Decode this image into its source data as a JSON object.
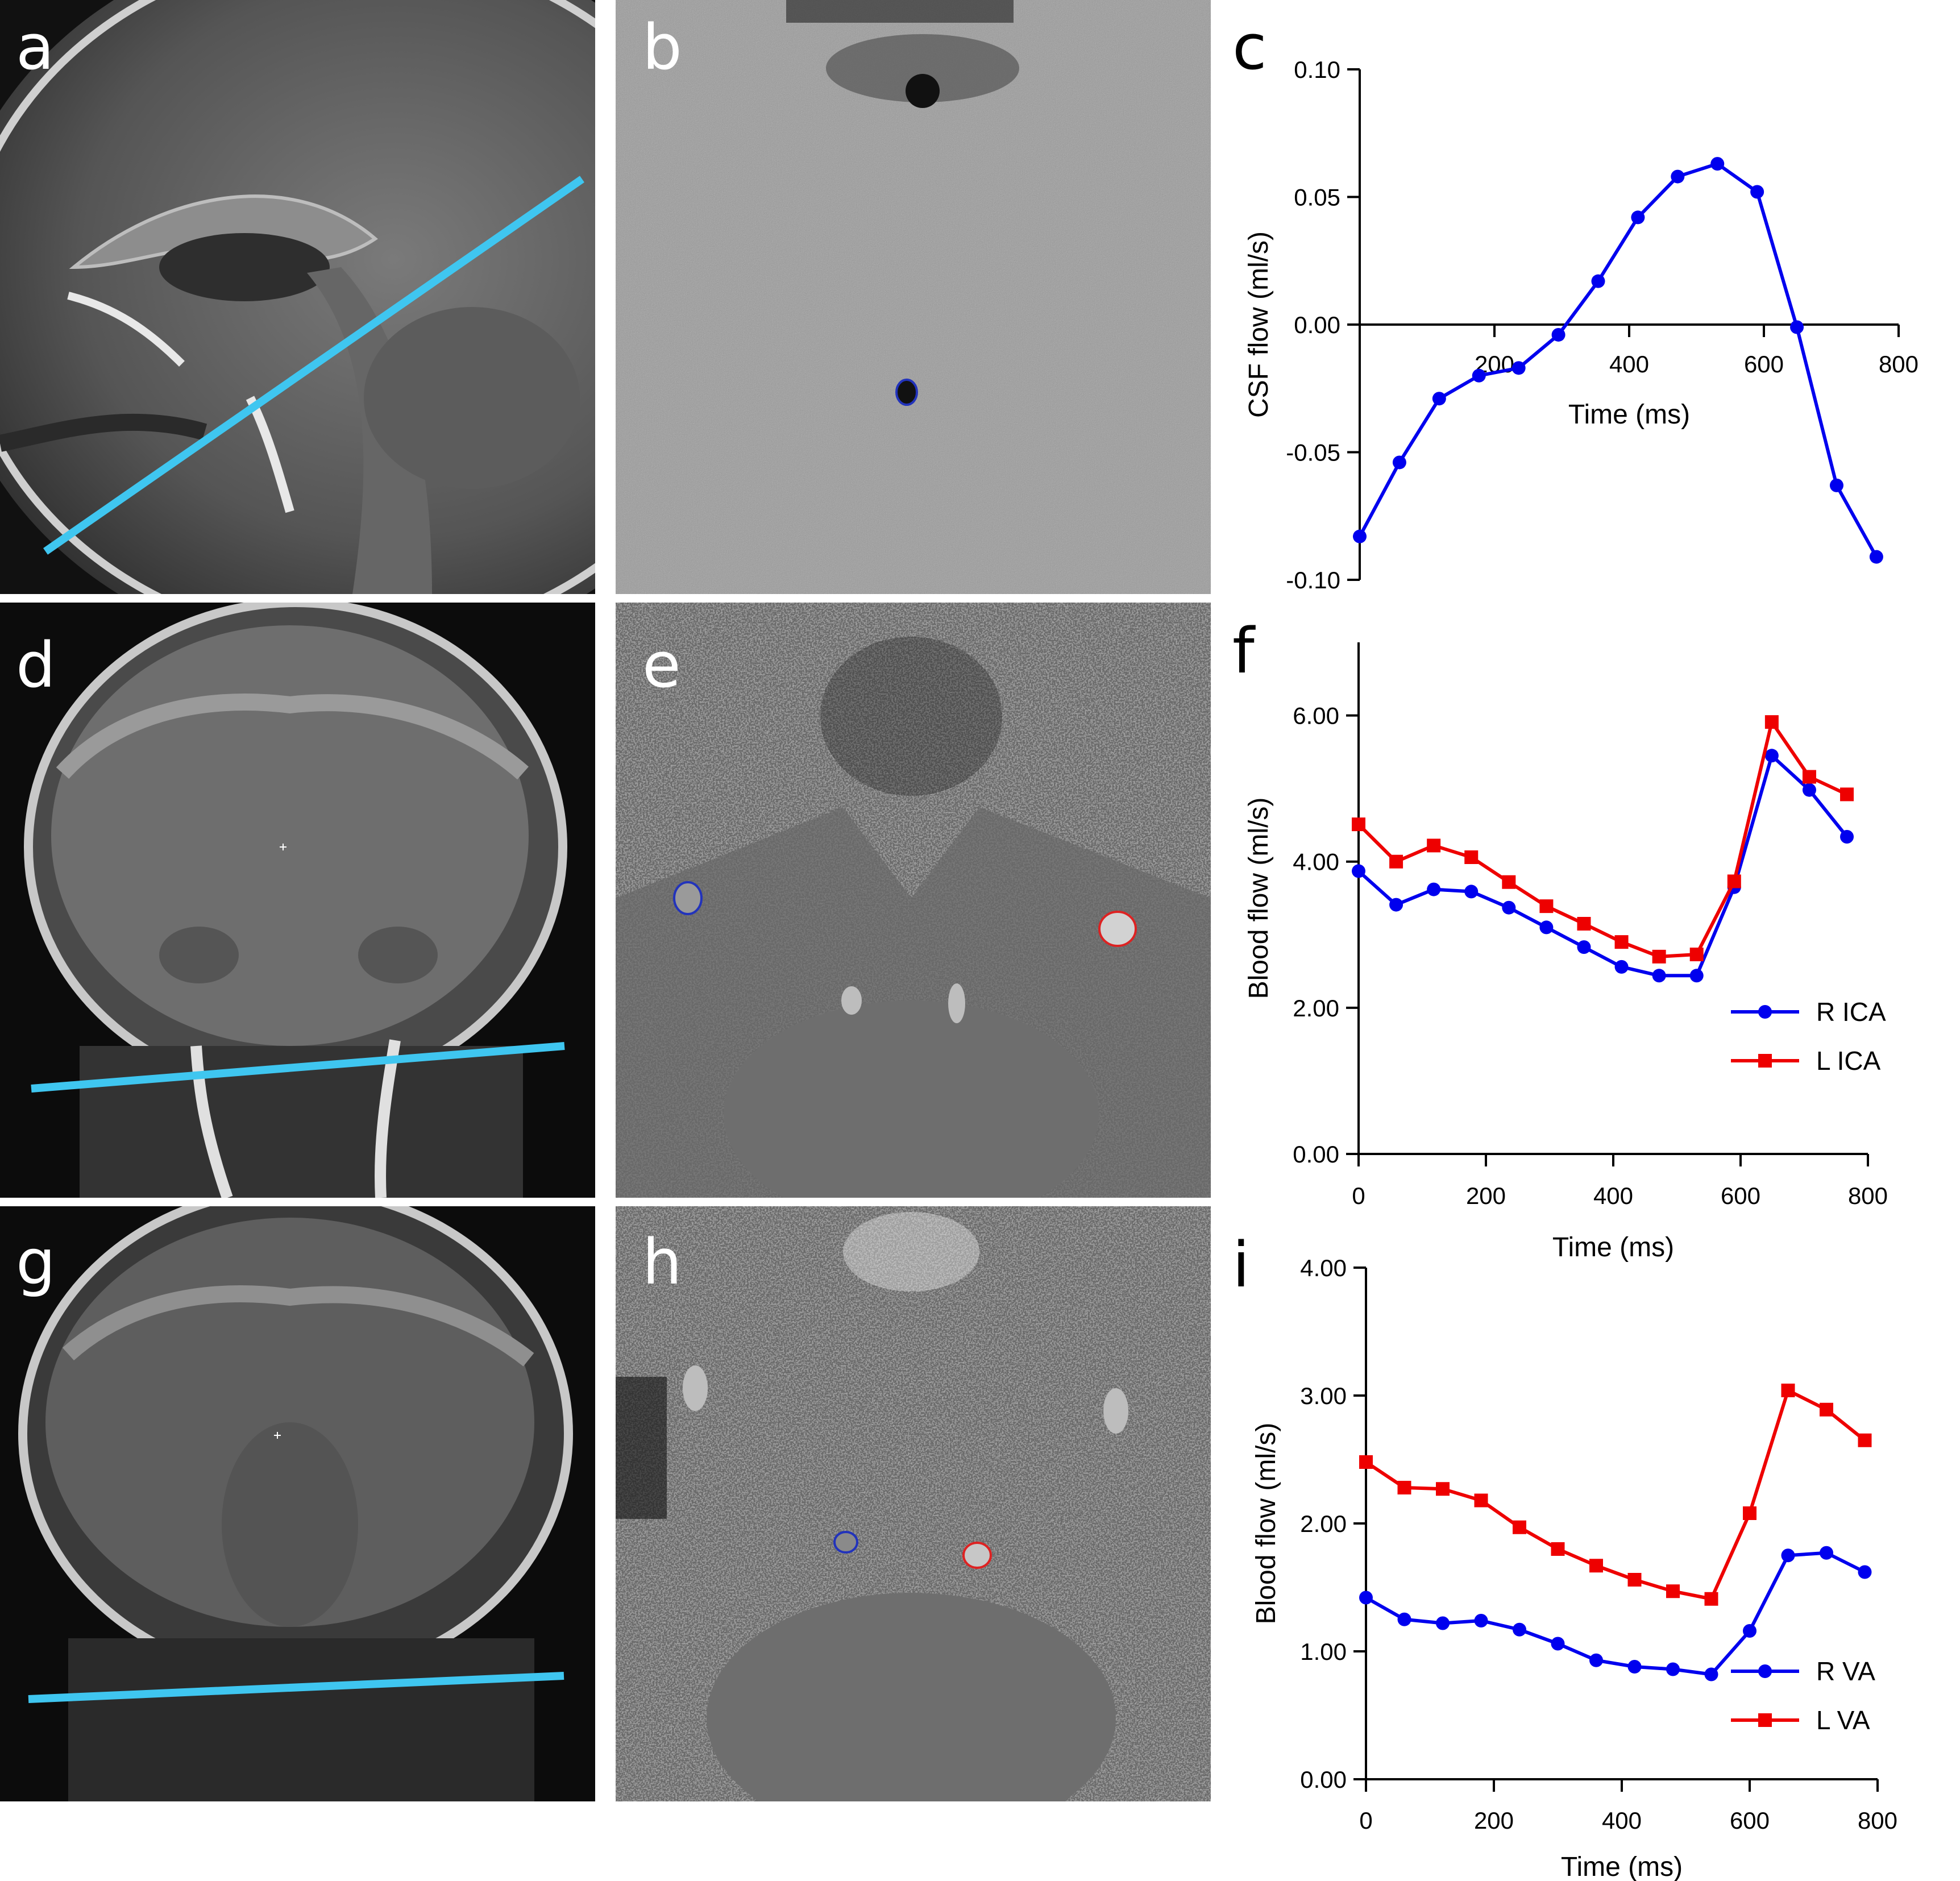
{
  "panel_labels": [
    "a",
    "b",
    "c",
    "d",
    "e",
    "f",
    "g",
    "h",
    "i"
  ],
  "colors": {
    "slice_line": "#3FC6F0",
    "series_blue": "#0000EE",
    "series_red": "#EE0000",
    "roi_blue": "#2233BB",
    "roi_red": "#DD2222"
  },
  "chart_data": [
    {
      "id": "c",
      "type": "line",
      "xlabel": "Time (ms)",
      "ylabel": "CSF flow (ml/s)",
      "xlim": [
        0,
        800
      ],
      "ylim": [
        -0.1,
        0.1
      ],
      "xticks": [
        "200",
        "400",
        "600",
        "800"
      ],
      "yticks": [
        "-0.10",
        "-0.05",
        "0.00",
        "0.05",
        "0.10"
      ],
      "series": [
        {
          "name": "CSF",
          "color": "#0000EE",
          "marker": "circle",
          "x": [
            0,
            59,
            118,
            177,
            236,
            295,
            354,
            413,
            472,
            531,
            590,
            649,
            708,
            767
          ],
          "y": [
            -0.083,
            -0.054,
            -0.029,
            -0.02,
            -0.017,
            -0.004,
            0.017,
            0.042,
            0.058,
            0.063,
            0.052,
            -0.001,
            -0.063,
            -0.091
          ]
        }
      ]
    },
    {
      "id": "f",
      "type": "line",
      "xlabel": "Time (ms)",
      "ylabel": "Blood flow (ml/s)",
      "xlim": [
        0,
        800
      ],
      "ylim": [
        0,
        7
      ],
      "xticks": [
        "0",
        "200",
        "400",
        "600",
        "800"
      ],
      "yticks": [
        "0.00",
        "2.00",
        "4.00",
        "6.00"
      ],
      "legend_position": "bottom-right",
      "series": [
        {
          "name": "R ICA",
          "color": "#0000EE",
          "marker": "circle",
          "x": [
            0,
            59,
            118,
            177,
            236,
            295,
            354,
            413,
            472,
            531,
            590,
            649,
            708,
            767
          ],
          "y": [
            3.87,
            3.41,
            3.62,
            3.59,
            3.37,
            3.1,
            2.83,
            2.56,
            2.44,
            2.44,
            3.65,
            5.45,
            4.98,
            4.34
          ]
        },
        {
          "name": "L ICA",
          "color": "#EE0000",
          "marker": "square",
          "x": [
            0,
            59,
            118,
            177,
            236,
            295,
            354,
            413,
            472,
            531,
            590,
            649,
            708,
            767
          ],
          "y": [
            4.51,
            4.0,
            4.22,
            4.06,
            3.72,
            3.39,
            3.15,
            2.9,
            2.7,
            2.73,
            3.73,
            5.91,
            5.16,
            4.92
          ]
        }
      ]
    },
    {
      "id": "i",
      "type": "line",
      "xlabel": "Time (ms)",
      "ylabel": "Blood flow (ml/s)",
      "xlim": [
        0,
        800
      ],
      "ylim": [
        0,
        4
      ],
      "xticks": [
        "0",
        "200",
        "400",
        "600",
        "800"
      ],
      "yticks": [
        "0.00",
        "1.00",
        "2.00",
        "3.00",
        "4.00"
      ],
      "legend_position": "bottom-right",
      "series": [
        {
          "name": "R VA",
          "color": "#0000EE",
          "marker": "circle",
          "x": [
            0,
            60,
            120,
            180,
            240,
            300,
            360,
            420,
            480,
            540,
            600,
            660,
            720,
            780
          ],
          "y": [
            1.42,
            1.25,
            1.22,
            1.24,
            1.17,
            1.06,
            0.93,
            0.88,
            0.86,
            0.82,
            1.16,
            1.75,
            1.77,
            1.62
          ]
        },
        {
          "name": "L VA",
          "color": "#EE0000",
          "marker": "square",
          "x": [
            0,
            60,
            120,
            180,
            240,
            300,
            360,
            420,
            480,
            540,
            600,
            660,
            720,
            780
          ],
          "y": [
            2.48,
            2.28,
            2.27,
            2.18,
            1.97,
            1.8,
            1.67,
            1.56,
            1.47,
            1.41,
            2.08,
            3.04,
            2.89,
            2.65
          ]
        }
      ]
    }
  ]
}
